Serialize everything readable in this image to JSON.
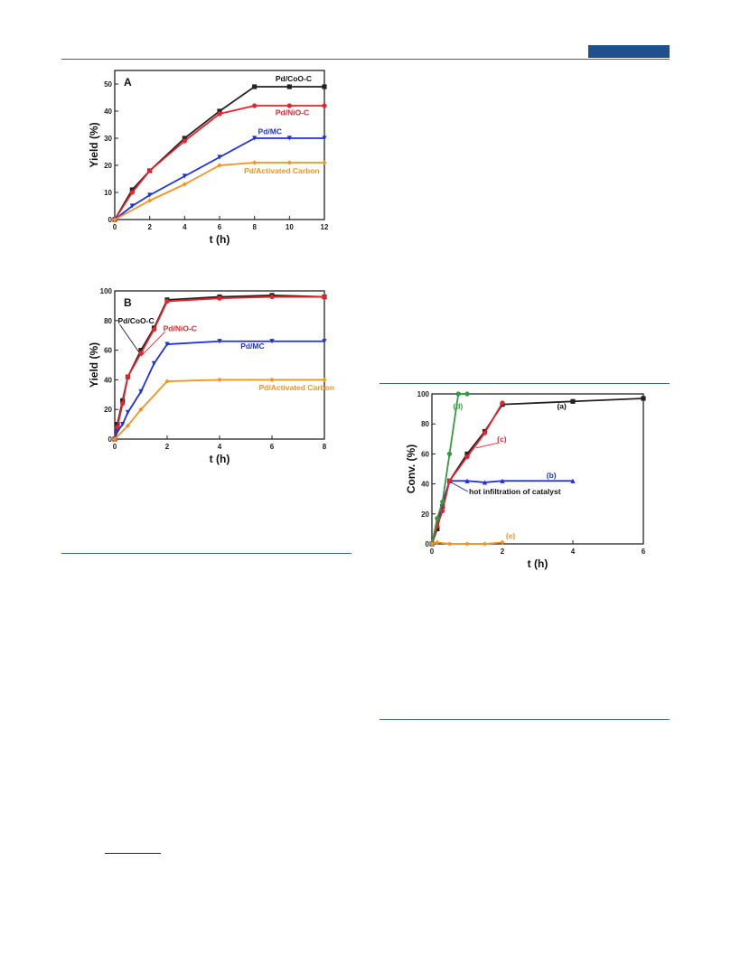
{
  "colors": {
    "black": "#222222",
    "red": "#e8232a",
    "blue": "#1e2fe0",
    "orange": "#f5921e",
    "green": "#2f9e3a",
    "rule": "#3a5f95"
  },
  "chart_data": [
    {
      "id": "A",
      "type": "line",
      "panel_label": "A",
      "xlabel": "t (h)",
      "ylabel": "Yield (%)",
      "xlim": [
        0,
        12
      ],
      "ylim": [
        0,
        55
      ],
      "xticks": [
        0,
        2,
        4,
        6,
        8,
        10,
        12
      ],
      "yticks": [
        0,
        10,
        20,
        30,
        40,
        50
      ],
      "series": [
        {
          "name": "Pd/CoO-C",
          "color": "black",
          "marker": "square",
          "x": [
            0,
            1,
            2,
            4,
            6,
            8,
            10,
            12
          ],
          "y": [
            0,
            11,
            18,
            30,
            40,
            49,
            49,
            49
          ],
          "label_x": 9.2,
          "label_y": 51
        },
        {
          "name": "Pd/NiO-C",
          "color": "red",
          "marker": "circle",
          "x": [
            0,
            1,
            2,
            4,
            6,
            8,
            10,
            12
          ],
          "y": [
            0,
            10,
            18,
            29,
            39,
            42,
            42,
            42
          ],
          "label_x": 9.2,
          "label_y": 38.5
        },
        {
          "name": "Pd/MC",
          "color": "blue",
          "marker": "triangle-down",
          "x": [
            0,
            1,
            2,
            4,
            6,
            8,
            10,
            12
          ],
          "y": [
            0,
            5,
            9,
            16,
            23,
            30,
            30,
            30
          ],
          "label_x": 8.2,
          "label_y": 31.5
        },
        {
          "name": "Pd/Activated Carbon",
          "color": "orange",
          "marker": "diamond",
          "x": [
            0,
            2,
            4,
            6,
            8,
            10,
            12
          ],
          "y": [
            0,
            7,
            13,
            20,
            21,
            21,
            21
          ],
          "label_x": 7.4,
          "label_y": 17
        }
      ]
    },
    {
      "id": "B",
      "type": "line",
      "panel_label": "B",
      "xlabel": "t (h)",
      "ylabel": "Yield (%)",
      "xlim": [
        0,
        8
      ],
      "ylim": [
        0,
        100
      ],
      "xticks": [
        0,
        2,
        4,
        6,
        8
      ],
      "yticks": [
        0,
        20,
        40,
        60,
        80,
        100
      ],
      "series": [
        {
          "name": "Pd/CoO-C",
          "color": "black",
          "marker": "square",
          "x": [
            0,
            0.1,
            0.3,
            0.5,
            1,
            1.5,
            2,
            4,
            6,
            8
          ],
          "y": [
            0,
            10,
            26,
            42,
            60,
            75,
            94,
            96,
            97,
            96
          ],
          "label_x": 0.12,
          "label_y": 78,
          "pointer": [
            0.95,
            58
          ]
        },
        {
          "name": "Pd/NiO-C",
          "color": "red",
          "marker": "circle",
          "x": [
            0,
            0.1,
            0.3,
            0.5,
            1,
            1.5,
            2,
            4,
            6,
            8
          ],
          "y": [
            0,
            8,
            24,
            42,
            58,
            74,
            93,
            95,
            96,
            96
          ],
          "label_x": 1.85,
          "label_y": 73,
          "pointer": [
            1.0,
            56
          ]
        },
        {
          "name": "Pd/MC",
          "color": "blue",
          "marker": "triangle-down",
          "x": [
            0,
            0.1,
            0.3,
            0.5,
            1,
            1.5,
            2,
            4,
            6,
            8
          ],
          "y": [
            0,
            5,
            10,
            18,
            32,
            51,
            64,
            66,
            66,
            66
          ],
          "label_x": 4.8,
          "label_y": 61
        },
        {
          "name": "Pd/Activated Carbon",
          "color": "orange",
          "marker": "diamond",
          "x": [
            0,
            0.5,
            1,
            2,
            4,
            6,
            8
          ],
          "y": [
            0,
            9,
            20,
            39,
            40,
            40,
            40
          ],
          "label_x": 5.5,
          "label_y": 33
        }
      ]
    },
    {
      "id": "C",
      "type": "line",
      "panel_label": "",
      "xlabel": "t (h)",
      "ylabel": "Conv. (%)",
      "xlim": [
        0,
        6
      ],
      "ylim": [
        0,
        100
      ],
      "xticks": [
        0,
        2,
        4,
        6
      ],
      "yticks": [
        0,
        20,
        40,
        60,
        80,
        100
      ],
      "annotation": {
        "text": "hot infiltration of catalyst",
        "x": 1.0,
        "y": 33,
        "pointer": [
          0.55,
          41
        ],
        "color": "blue"
      },
      "series": [
        {
          "name": "(a)",
          "color": "black",
          "marker": "square",
          "x": [
            0,
            0.15,
            0.3,
            0.5,
            1,
            1.5,
            2,
            4,
            6
          ],
          "y": [
            0,
            10,
            25,
            42,
            60,
            75,
            93,
            95,
            97
          ],
          "label_x": 3.55,
          "label_y": 90
        },
        {
          "name": "(b)",
          "color": "blue",
          "marker": "triangle-up",
          "x": [
            0,
            0.15,
            0.3,
            0.5,
            1,
            1.5,
            2,
            4
          ],
          "y": [
            0,
            13,
            27,
            42,
            42,
            41,
            42,
            42
          ],
          "label_x": 3.25,
          "label_y": 44
        },
        {
          "name": "(c)",
          "color": "red",
          "marker": "circle",
          "x": [
            0,
            0.15,
            0.3,
            0.5,
            1,
            1.5,
            2
          ],
          "y": [
            0,
            12,
            22,
            42,
            58,
            74,
            94
          ],
          "label_x": 1.85,
          "label_y": 68,
          "pointer": [
            1.25,
            64
          ]
        },
        {
          "name": "(d)",
          "color": "green",
          "marker": "circle",
          "x": [
            0,
            0.15,
            0.3,
            0.5,
            0.75,
            1.0
          ],
          "y": [
            0,
            17,
            28,
            60,
            100,
            100
          ],
          "label_x": 0.6,
          "label_y": 90
        },
        {
          "name": "(e)",
          "color": "orange",
          "marker": "diamond",
          "x": [
            0,
            0.15,
            0.5,
            1,
            1.5,
            2
          ],
          "y": [
            0,
            1,
            0,
            0,
            0,
            1
          ],
          "label_x": 2.1,
          "label_y": 3.5
        }
      ]
    }
  ]
}
